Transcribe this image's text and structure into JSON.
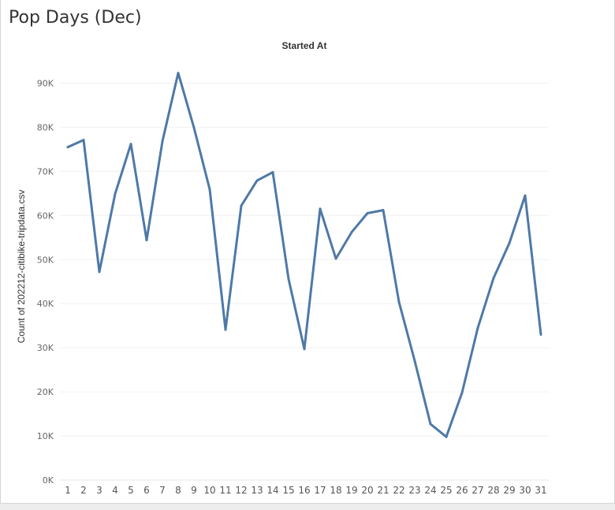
{
  "title": "Pop Days (Dec)",
  "line_color": "#4e79a7",
  "chart_data": {
    "type": "line",
    "title": "Pop Days (Dec)",
    "column_header": "Started At",
    "ylabel": "Count of 202212-citibike-tripdata.csv",
    "xlabel": "",
    "ylim": [
      0,
      95000
    ],
    "yticks": [
      0,
      10000,
      20000,
      30000,
      40000,
      50000,
      60000,
      70000,
      80000,
      90000
    ],
    "ytick_labels": [
      "0K",
      "10K",
      "20K",
      "30K",
      "40K",
      "50K",
      "60K",
      "70K",
      "80K",
      "90K"
    ],
    "categories": [
      "1",
      "2",
      "3",
      "4",
      "5",
      "6",
      "7",
      "8",
      "9",
      "10",
      "11",
      "12",
      "13",
      "14",
      "15",
      "16",
      "17",
      "18",
      "19",
      "20",
      "21",
      "22",
      "23",
      "24",
      "25",
      "26",
      "27",
      "28",
      "29",
      "30",
      "31"
    ],
    "series": [
      {
        "values": [
          75500,
          77100,
          47200,
          64900,
          76200,
          54400,
          76800,
          92300,
          79900,
          65900,
          34100,
          62200,
          67900,
          69800,
          45600,
          29700,
          61500,
          50200,
          56200,
          60500,
          61200,
          40400,
          27000,
          12700,
          9800,
          19800,
          34500,
          45800,
          53700,
          64500,
          33000
        ]
      }
    ],
    "grid": true,
    "legend": "none"
  }
}
